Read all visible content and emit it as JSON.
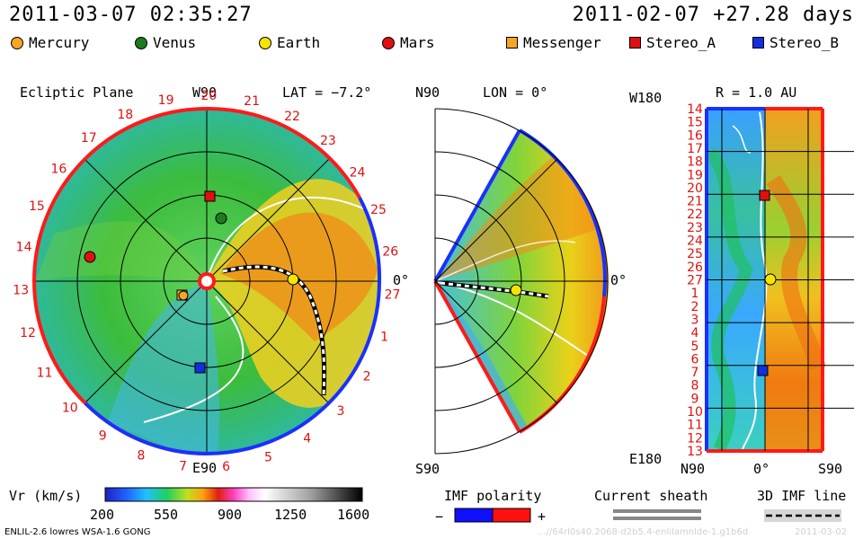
{
  "header": {
    "datetime": "2011-03-07 02:35:27",
    "run_info": "2011-02-07 +27.28 days"
  },
  "legend": [
    {
      "label": "Mercury",
      "shape": "circle",
      "color": "#f5a623"
    },
    {
      "label": "Venus",
      "shape": "circle",
      "color": "#1e7b1e"
    },
    {
      "label": "Earth",
      "shape": "circle",
      "color": "#f5e400"
    },
    {
      "label": "Mars",
      "shape": "circle",
      "color": "#e01010"
    },
    {
      "label": "Messenger",
      "shape": "square",
      "color": "#f5a623"
    },
    {
      "label": "Stereo_A",
      "shape": "square",
      "color": "#e01010"
    },
    {
      "label": "Stereo_B",
      "shape": "square",
      "color": "#1030e0"
    }
  ],
  "panel_ecliptic": {
    "title": "Ecliptic Plane",
    "top_axis": "W90",
    "bottom_axis": "E90",
    "right_axis": "0°",
    "lat_label": "LAT = −7.2°",
    "rotation_numbers": [
      "27",
      "1",
      "2",
      "3",
      "4",
      "5",
      "6",
      "7",
      "8",
      "9",
      "10",
      "11",
      "12",
      "13",
      "14",
      "15",
      "16",
      "17",
      "18",
      "19",
      "20",
      "21",
      "22",
      "23",
      "24",
      "25",
      "26"
    ]
  },
  "panel_meridional": {
    "top_axis": "N90",
    "bottom_axis": "S90",
    "right_axis": "0°",
    "lon_label": "LON = 0°"
  },
  "panel_radial": {
    "r_label": "R = 1.0 AU",
    "top_left": "W180",
    "bottom_left": "E180",
    "x_ticks": [
      "N90",
      "0°",
      "S90"
    ],
    "y_labels": [
      "14",
      "15",
      "16",
      "17",
      "18",
      "19",
      "20",
      "21",
      "22",
      "23",
      "24",
      "25",
      "26",
      "27",
      "1",
      "2",
      "3",
      "4",
      "5",
      "6",
      "7",
      "8",
      "9",
      "10",
      "11",
      "12",
      "13"
    ]
  },
  "colorbar": {
    "label": "Vr (km/s)",
    "ticks": [
      "200",
      "550",
      "900",
      "1250",
      "1600"
    ]
  },
  "imf": {
    "title": "IMF polarity",
    "minus": "−",
    "plus": "+",
    "negative_color": "#1010ff",
    "positive_color": "#ff1010"
  },
  "sheath": {
    "title": "Current sheath"
  },
  "imf3d": {
    "title": "3D IMF line"
  },
  "footer": {
    "model": "ENLIL-2.6 lowres WSA-1.6 GONG",
    "watermark": "...//64rl0s40.2068-d2b5.4-enlilamnlde-1.g1b6d",
    "date_stamp": "2011-03-02"
  }
}
